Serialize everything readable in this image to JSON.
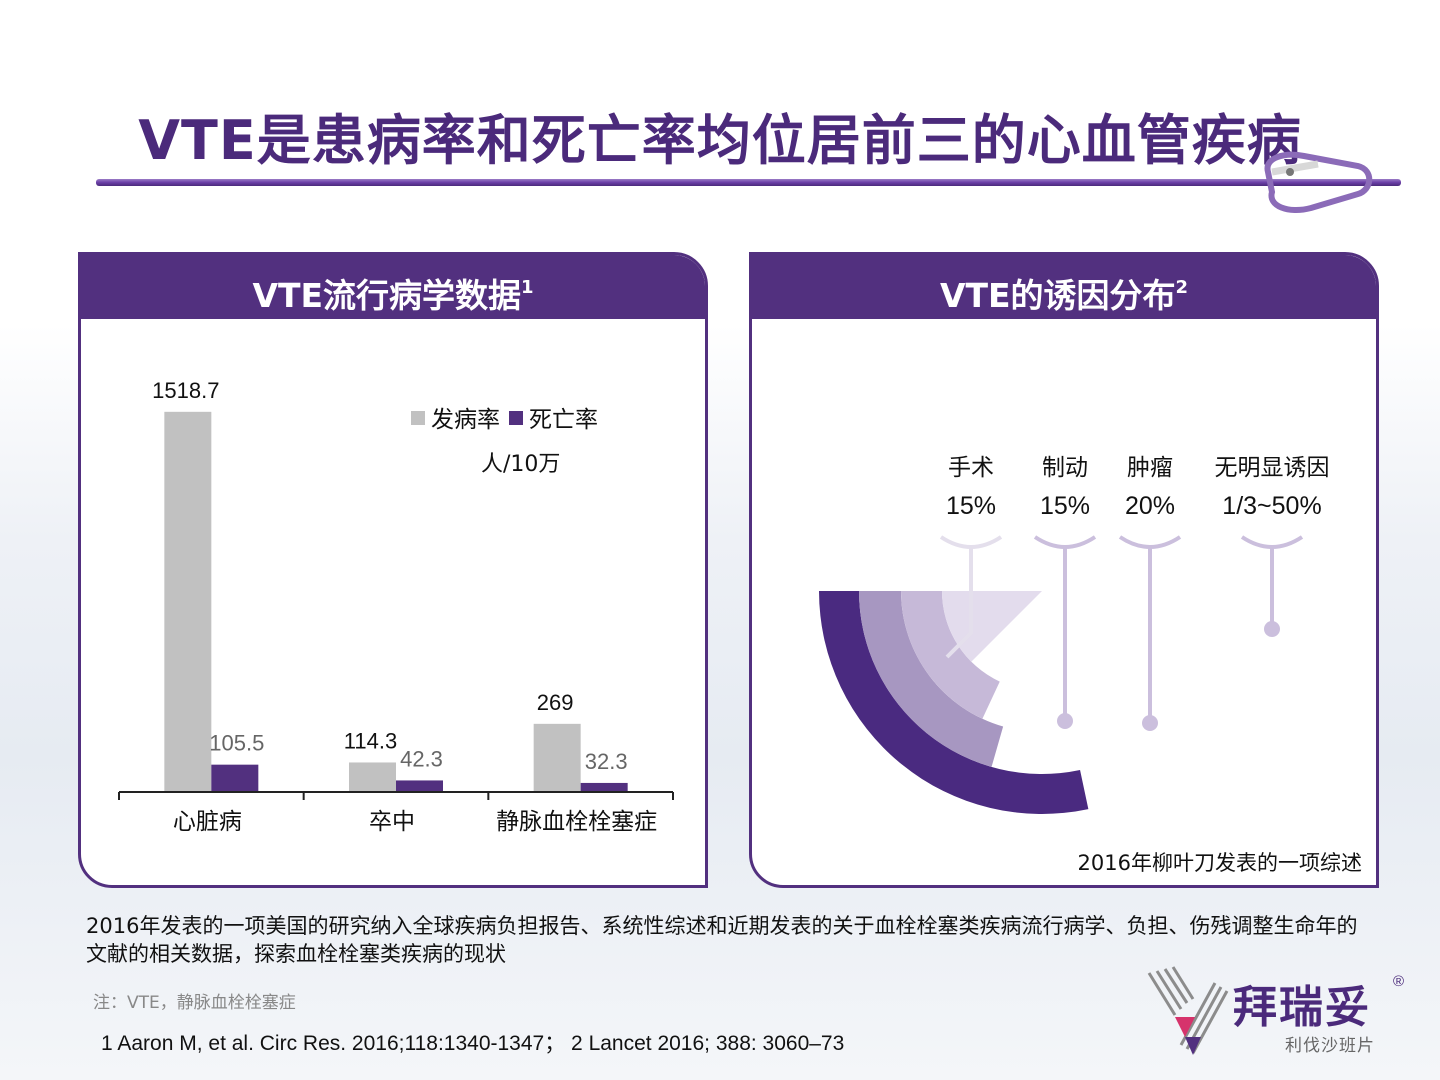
{
  "title": "VTE是患病率和死亡率均位居前三的心血管疾病",
  "colors": {
    "purple": "#52307f",
    "gray": "#c1c1c1",
    "title": "#4b2a7b"
  },
  "left_panel": {
    "heading": "VTE流行病学数据",
    "heading_sup": "1"
  },
  "right_panel": {
    "heading": "VTE的诱因分布",
    "heading_sup": "2",
    "caption": "2016年柳叶刀发表的一项综述"
  },
  "chart_data": [
    {
      "type": "bar",
      "categories": [
        "心脏病",
        "卒中",
        "静脉血栓栓塞症"
      ],
      "series": [
        {
          "name": "发病率",
          "values": [
            1518.7,
            114.3,
            269
          ],
          "labels": [
            "1518.7",
            "114.3",
            "269"
          ],
          "color": "#c1c1c1"
        },
        {
          "name": "死亡率",
          "values": [
            105.5,
            42.3,
            32.3
          ],
          "labels": [
            "105.5",
            "42.3",
            "32.3"
          ],
          "color": "#52307f"
        }
      ],
      "unit": "人/10万",
      "legend_position": "top-right",
      "ylim": [
        0,
        1600
      ]
    },
    {
      "type": "pie",
      "items": [
        {
          "name": "手术",
          "value": "15%",
          "color": "#e3dced"
        },
        {
          "name": "制动",
          "value": "15%",
          "color": "#c6b9d8"
        },
        {
          "name": "肿瘤",
          "value": "20%",
          "color": "#a797c1"
        },
        {
          "name": "无明显诱因",
          "value": "1/3~50%",
          "color": "#4a2a80"
        }
      ]
    }
  ],
  "body_text": "2016年发表的一项美国的研究纳入全球疾病负担报告、系统性综述和近期发表的关于血栓栓塞类疾病流行病学、负担、伤残调整生命年的文献的相关数据，探索血栓栓塞类疾病的现状",
  "note": "注：VTE，静脉血栓栓塞症",
  "refs": "1 Aaron M, et al. Circ Res. 2016;118:1340-1347；  2 Lancet 2016; 388: 3060–73",
  "brand": {
    "name": "拜瑞妥",
    "reg": "®",
    "sub": "利伐沙班片"
  }
}
